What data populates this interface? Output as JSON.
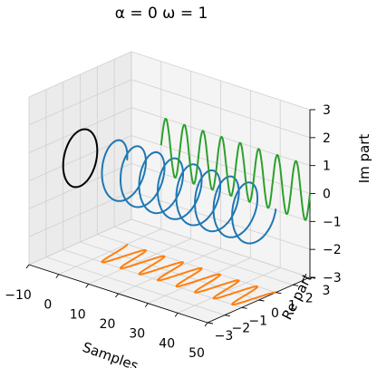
{
  "chart_data": {
    "type": "line3d",
    "title": "α = 0   ω = 1",
    "xlabel": "Samples",
    "ylabel": "Re part",
    "zlabel": "Im part",
    "xlim": [
      -10,
      50
    ],
    "ylim": [
      -3,
      3
    ],
    "zlim": [
      -3,
      3
    ],
    "x_ticks": [
      "−10",
      "0",
      "10",
      "20",
      "30",
      "40",
      "50"
    ],
    "y_ticks": [
      "−3",
      "−2",
      "−1",
      "0",
      "1",
      "2",
      "3"
    ],
    "z_ticks": [
      "−3",
      "−2",
      "−1",
      "0",
      "1",
      "2",
      "3"
    ],
    "grid": true,
    "series": [
      {
        "kind": "helix",
        "color": "#1f77b4",
        "samples": [
          0,
          50
        ],
        "re_amplitude": 1,
        "im_amplitude": 1,
        "turns": 8
      },
      {
        "kind": "projection-on-floor",
        "color": "#ff7f0e",
        "samples": [
          0,
          50
        ],
        "re_amplitude": 1,
        "im_value": -3,
        "turns": 8
      },
      {
        "kind": "projection-on-back-wall",
        "color": "#2ca02c",
        "samples": [
          0,
          50
        ],
        "re_value": 3,
        "im_amplitude": 1,
        "turns": 8
      },
      {
        "kind": "projection-on-side-wall",
        "color": "#000000",
        "samples_value": -10,
        "re_amplitude": 1,
        "im_amplitude": 1
      }
    ]
  }
}
